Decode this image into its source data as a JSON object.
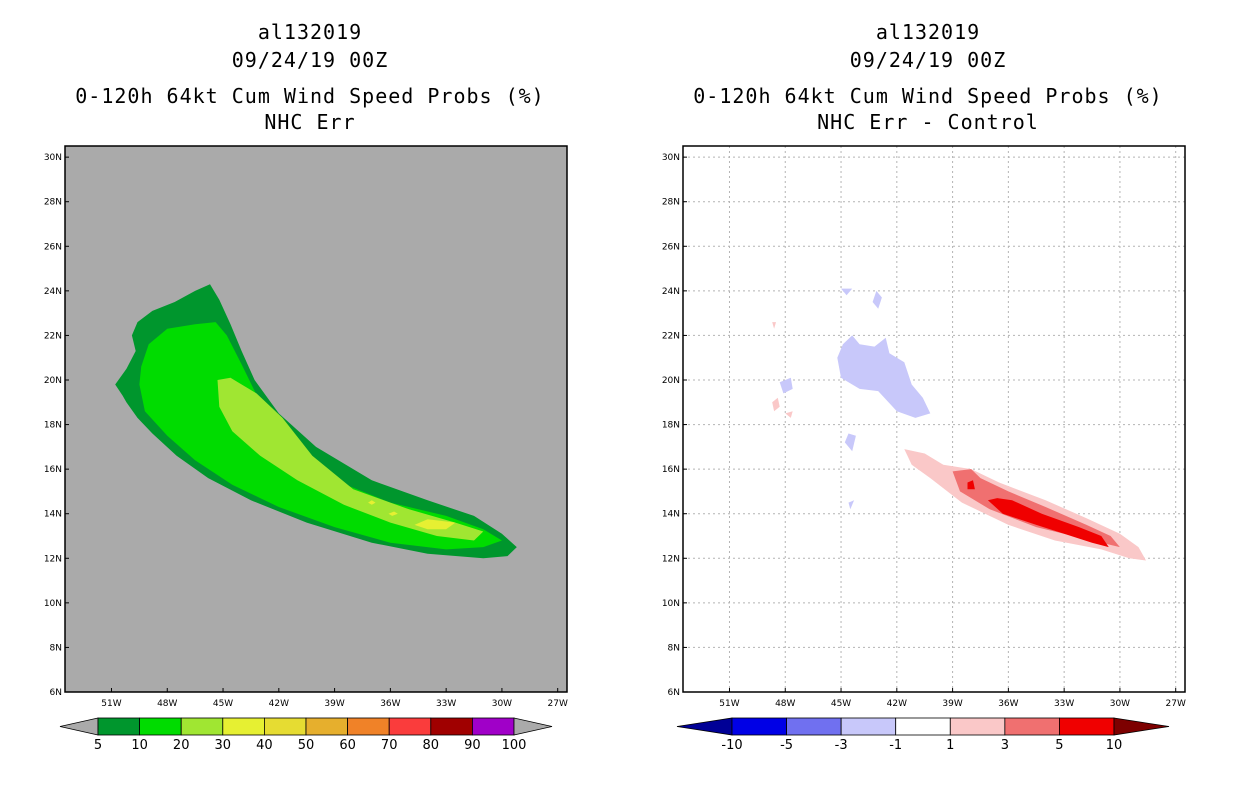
{
  "panels": [
    {
      "title": {
        "storm_id": "al132019",
        "date": "09/24/19 00Z",
        "product": "0-120h 64kt Cum Wind Speed Probs (%)",
        "subtitle": "NHC Err"
      },
      "colorbar": {
        "labels": [
          "5",
          "10",
          "20",
          "30",
          "40",
          "50",
          "60",
          "70",
          "80",
          "90",
          "100"
        ],
        "colors": [
          "#00962d",
          "#00dc00",
          "#a0e632",
          "#e6f032",
          "#e6dc32",
          "#e6af2d",
          "#f08228",
          "#fa3c3c",
          "#a00000",
          "#a000c8"
        ],
        "end_color": "#aaaaaa"
      }
    },
    {
      "title": {
        "storm_id": "al132019",
        "date": "09/24/19 00Z",
        "product": "0-120h 64kt Cum Wind Speed Probs (%)",
        "subtitle": "NHC Err - Control"
      },
      "colorbar": {
        "labels": [
          "-10",
          "-5",
          "-3",
          "-1",
          "1",
          "3",
          "5",
          "10"
        ],
        "colors": [
          "#0000e6",
          "#7070f0",
          "#c8c8fa",
          "#ffffff",
          "#fac8c8",
          "#f07070",
          "#f00000"
        ],
        "end_left": "#000096",
        "end_right": "#7d0000"
      }
    }
  ],
  "chart_data": [
    {
      "type": "heatmap",
      "title": "0-120h 64kt Cum Wind Speed Probs (%) — NHC Err",
      "x_ticks": [
        "51W",
        "48W",
        "45W",
        "42W",
        "39W",
        "36W",
        "33W",
        "30W",
        "27W"
      ],
      "y_ticks": [
        "6N",
        "8N",
        "10N",
        "12N",
        "14N",
        "16N",
        "18N",
        "20N",
        "22N",
        "24N",
        "26N",
        "28N",
        "30N"
      ],
      "xlim": [
        -53.5,
        -26.5
      ],
      "ylim": [
        6,
        30.5
      ],
      "background": "#aaaaaa",
      "grid": false,
      "levels": [
        5,
        10,
        20,
        30,
        40,
        50,
        60,
        70,
        80,
        90,
        100
      ],
      "contours": [
        {
          "level": 5,
          "color": "#00962d",
          "points": [
            [
              -50.8,
              19.8
            ],
            [
              -50.4,
              19.3
            ],
            [
              -50.2,
              19.0
            ],
            [
              -49.6,
              18.3
            ],
            [
              -48.8,
              17.6
            ],
            [
              -47.5,
              16.6
            ],
            [
              -45.8,
              15.6
            ],
            [
              -43.5,
              14.6
            ],
            [
              -40.5,
              13.6
            ],
            [
              -37.0,
              12.7
            ],
            [
              -34.0,
              12.2
            ],
            [
              -31.0,
              12.0
            ],
            [
              -29.7,
              12.1
            ],
            [
              -29.2,
              12.5
            ],
            [
              -30.0,
              13.1
            ],
            [
              -31.5,
              13.9
            ],
            [
              -34.0,
              14.6
            ],
            [
              -37.0,
              15.5
            ],
            [
              -40.0,
              17.0
            ],
            [
              -42.0,
              18.5
            ],
            [
              -43.3,
              20.0
            ],
            [
              -44.0,
              21.3
            ],
            [
              -44.6,
              22.5
            ],
            [
              -45.2,
              23.6
            ],
            [
              -45.7,
              24.3
            ],
            [
              -46.5,
              24.0
            ],
            [
              -47.6,
              23.5
            ],
            [
              -48.8,
              23.1
            ],
            [
              -49.6,
              22.6
            ],
            [
              -49.9,
              22.0
            ],
            [
              -49.7,
              21.3
            ],
            [
              -50.2,
              20.5
            ]
          ]
        },
        {
          "level": 10,
          "color": "#00dc00",
          "points": [
            [
              -49.5,
              19.8
            ],
            [
              -49.2,
              18.6
            ],
            [
              -48.0,
              17.5
            ],
            [
              -46.5,
              16.4
            ],
            [
              -44.5,
              15.3
            ],
            [
              -42.0,
              14.3
            ],
            [
              -39.0,
              13.4
            ],
            [
              -36.0,
              12.7
            ],
            [
              -33.0,
              12.4
            ],
            [
              -31.0,
              12.5
            ],
            [
              -30.0,
              12.8
            ],
            [
              -31.0,
              13.3
            ],
            [
              -33.0,
              13.9
            ],
            [
              -36.0,
              14.5
            ],
            [
              -39.0,
              15.5
            ],
            [
              -41.5,
              17.3
            ],
            [
              -43.0,
              19.0
            ],
            [
              -44.0,
              20.7
            ],
            [
              -44.8,
              22.0
            ],
            [
              -45.4,
              22.6
            ],
            [
              -46.5,
              22.5
            ],
            [
              -48.0,
              22.3
            ],
            [
              -49.0,
              21.6
            ],
            [
              -49.4,
              20.6
            ]
          ]
        },
        {
          "level": 20,
          "color": "#a0e632",
          "points": [
            [
              -45.3,
              20.0
            ],
            [
              -45.2,
              18.8
            ],
            [
              -44.5,
              17.7
            ],
            [
              -43.0,
              16.6
            ],
            [
              -41.0,
              15.5
            ],
            [
              -38.5,
              14.4
            ],
            [
              -36.0,
              13.6
            ],
            [
              -33.5,
              13.0
            ],
            [
              -31.5,
              12.8
            ],
            [
              -31.0,
              13.2
            ],
            [
              -32.5,
              13.6
            ],
            [
              -35.0,
              14.2
            ],
            [
              -38.0,
              15.1
            ],
            [
              -40.2,
              16.6
            ],
            [
              -41.8,
              18.3
            ],
            [
              -43.2,
              19.4
            ],
            [
              -44.6,
              20.1
            ]
          ]
        },
        {
          "level": 30,
          "color": "#e6f032",
          "points": [
            [
              -34.7,
              13.5
            ],
            [
              -34.0,
              13.75
            ],
            [
              -32.5,
              13.6
            ],
            [
              -33.0,
              13.3
            ],
            [
              -34.0,
              13.3
            ]
          ]
        },
        {
          "level": 30,
          "color": "#e6f032",
          "points": [
            [
              -36.1,
              14.0
            ],
            [
              -35.8,
              14.1
            ],
            [
              -35.6,
              14.0
            ],
            [
              -35.9,
              13.9
            ]
          ]
        },
        {
          "level": 30,
          "color": "#e6f032",
          "points": [
            [
              -37.2,
              14.5
            ],
            [
              -37.0,
              14.6
            ],
            [
              -36.8,
              14.5
            ],
            [
              -37.0,
              14.4
            ]
          ]
        }
      ]
    },
    {
      "type": "heatmap",
      "title": "0-120h 64kt Cum Wind Speed Probs (%) — NHC Err - Control",
      "x_ticks": [
        "51W",
        "48W",
        "45W",
        "42W",
        "39W",
        "36W",
        "33W",
        "30W",
        "27W"
      ],
      "y_ticks": [
        "6N",
        "8N",
        "10N",
        "12N",
        "14N",
        "16N",
        "18N",
        "20N",
        "22N",
        "24N",
        "26N",
        "28N",
        "30N"
      ],
      "xlim": [
        -53.5,
        -26.5
      ],
      "ylim": [
        6,
        30.5
      ],
      "background": "#ffffff",
      "grid": true,
      "levels": [
        -10,
        -5,
        -3,
        -1,
        1,
        3,
        5,
        10
      ],
      "contours": [
        {
          "level": -1,
          "color": "#c8c8fa",
          "points": [
            [
              -44.4,
              22.0
            ],
            [
              -44.0,
              21.6
            ],
            [
              -43.2,
              21.5
            ],
            [
              -42.6,
              21.9
            ],
            [
              -42.4,
              21.2
            ],
            [
              -41.6,
              20.8
            ],
            [
              -41.2,
              19.8
            ],
            [
              -40.6,
              19.2
            ],
            [
              -40.2,
              18.5
            ],
            [
              -41.0,
              18.3
            ],
            [
              -42.0,
              18.6
            ],
            [
              -43.0,
              19.5
            ],
            [
              -44.0,
              19.6
            ],
            [
              -45.0,
              20.1
            ],
            [
              -45.2,
              21.0
            ],
            [
              -44.9,
              21.6
            ]
          ]
        },
        {
          "level": -1,
          "color": "#c8c8fa",
          "points": [
            [
              -43.1,
              24.0
            ],
            [
              -42.8,
              23.7
            ],
            [
              -43.0,
              23.2
            ],
            [
              -43.3,
              23.5
            ]
          ]
        },
        {
          "level": -1,
          "color": "#c8c8fa",
          "points": [
            [
              -44.6,
              17.6
            ],
            [
              -44.2,
              17.5
            ],
            [
              -44.4,
              16.8
            ],
            [
              -44.8,
              17.2
            ]
          ]
        },
        {
          "level": -1,
          "color": "#c8c8fa",
          "points": [
            [
              -48.3,
              19.9
            ],
            [
              -47.7,
              20.1
            ],
            [
              -47.6,
              19.6
            ],
            [
              -48.1,
              19.4
            ]
          ]
        },
        {
          "level": -1,
          "color": "#c8c8fa",
          "points": [
            [
              -45.0,
              24.1
            ],
            [
              -44.4,
              24.1
            ],
            [
              -44.7,
              23.8
            ]
          ]
        },
        {
          "level": -1,
          "color": "#c8c8fa",
          "points": [
            [
              -44.6,
              14.5
            ],
            [
              -44.3,
              14.6
            ],
            [
              -44.5,
              14.2
            ]
          ]
        },
        {
          "level": 1,
          "color": "#fac8c8",
          "points": [
            [
              -41.6,
              16.9
            ],
            [
              -41.2,
              16.2
            ],
            [
              -40.2,
              15.6
            ],
            [
              -38.5,
              14.5
            ],
            [
              -36.0,
              13.5
            ],
            [
              -33.5,
              12.8
            ],
            [
              -31.0,
              12.4
            ],
            [
              -29.5,
              12.0
            ],
            [
              -28.6,
              11.9
            ],
            [
              -29.0,
              12.5
            ],
            [
              -30.0,
              13.1
            ],
            [
              -31.8,
              13.8
            ],
            [
              -34.0,
              14.6
            ],
            [
              -36.5,
              15.4
            ],
            [
              -38.0,
              16.0
            ],
            [
              -39.5,
              16.2
            ],
            [
              -40.5,
              16.7
            ]
          ]
        },
        {
          "level": 1,
          "color": "#fac8c8",
          "points": [
            [
              -48.7,
              19.0
            ],
            [
              -48.4,
              19.2
            ],
            [
              -48.3,
              18.8
            ],
            [
              -48.6,
              18.6
            ]
          ]
        },
        {
          "level": 1,
          "color": "#fac8c8",
          "points": [
            [
              -48.0,
              18.5
            ],
            [
              -47.6,
              18.6
            ],
            [
              -47.7,
              18.3
            ]
          ]
        },
        {
          "level": 1,
          "color": "#fac8c8",
          "points": [
            [
              -48.7,
              22.6
            ],
            [
              -48.5,
              22.6
            ],
            [
              -48.6,
              22.3
            ]
          ]
        },
        {
          "level": 3,
          "color": "#f07070",
          "points": [
            [
              -39.0,
              15.9
            ],
            [
              -38.6,
              15.0
            ],
            [
              -37.0,
              14.2
            ],
            [
              -34.5,
              13.4
            ],
            [
              -31.5,
              12.8
            ],
            [
              -30.0,
              12.5
            ],
            [
              -30.5,
              13.0
            ],
            [
              -31.8,
              13.5
            ],
            [
              -34.0,
              14.3
            ],
            [
              -36.0,
              15.0
            ],
            [
              -37.5,
              15.6
            ],
            [
              -38.0,
              16.0
            ]
          ]
        },
        {
          "level": 5,
          "color": "#f00000",
          "points": [
            [
              -37.1,
              14.6
            ],
            [
              -36.3,
              14.0
            ],
            [
              -34.5,
              13.5
            ],
            [
              -33.0,
              13.1
            ],
            [
              -31.5,
              12.7
            ],
            [
              -30.6,
              12.5
            ],
            [
              -31.0,
              13.0
            ],
            [
              -32.2,
              13.4
            ],
            [
              -34.2,
              14.0
            ],
            [
              -35.8,
              14.6
            ],
            [
              -36.6,
              14.7
            ]
          ]
        },
        {
          "level": 5,
          "color": "#f00000",
          "points": [
            [
              -38.2,
              15.4
            ],
            [
              -37.9,
              15.5
            ],
            [
              -37.8,
              15.1
            ],
            [
              -38.2,
              15.1
            ]
          ]
        }
      ]
    }
  ]
}
